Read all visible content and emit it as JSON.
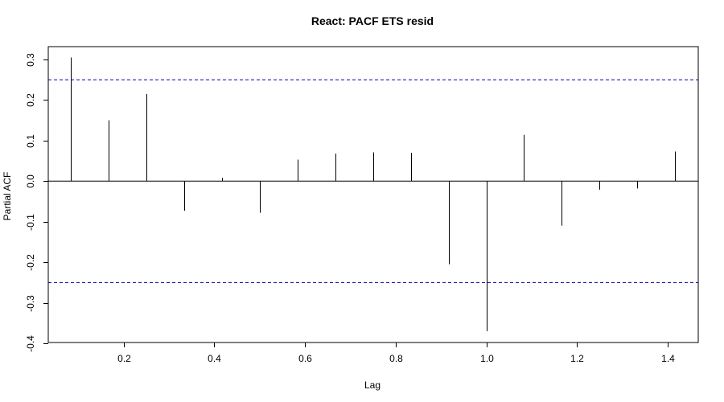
{
  "chart_data": {
    "type": "bar",
    "title": "React: PACF ETS resid",
    "xlabel": "Lag",
    "ylabel": "Partial ACF",
    "xlim": [
      0.03,
      1.47
    ],
    "ylim": [
      -0.4,
      0.3
    ],
    "x_ticks": [
      0.2,
      0.4,
      0.6,
      0.8,
      1.0,
      1.2,
      1.4
    ],
    "x_tick_labels": [
      "0.2",
      "0.4",
      "0.6",
      "0.8",
      "1.0",
      "1.2",
      "1.4"
    ],
    "y_ticks": [
      -0.4,
      -0.3,
      -0.2,
      -0.1,
      0.0,
      0.1,
      0.2,
      0.3
    ],
    "y_tick_labels": [
      "-0.4",
      "-0.3",
      "-0.2",
      "-0.1",
      "0.0",
      "0.1",
      "0.2",
      "0.3"
    ],
    "confidence_bound": 0.25,
    "grid": false,
    "x": [
      0.0833,
      0.1667,
      0.25,
      0.3333,
      0.4167,
      0.5,
      0.5833,
      0.6667,
      0.75,
      0.8333,
      0.9167,
      1.0,
      1.0833,
      1.1667,
      1.25,
      1.3333,
      1.4167
    ],
    "values": [
      0.305,
      0.15,
      0.215,
      -0.073,
      0.008,
      -0.078,
      0.053,
      0.068,
      0.071,
      0.07,
      -0.205,
      -0.37,
      0.114,
      -0.11,
      -0.021,
      -0.018,
      0.073
    ],
    "colors": {
      "bars": "#000000",
      "zero_line": "#000000",
      "bounds": "#0000b0",
      "frame": "#000000"
    }
  }
}
